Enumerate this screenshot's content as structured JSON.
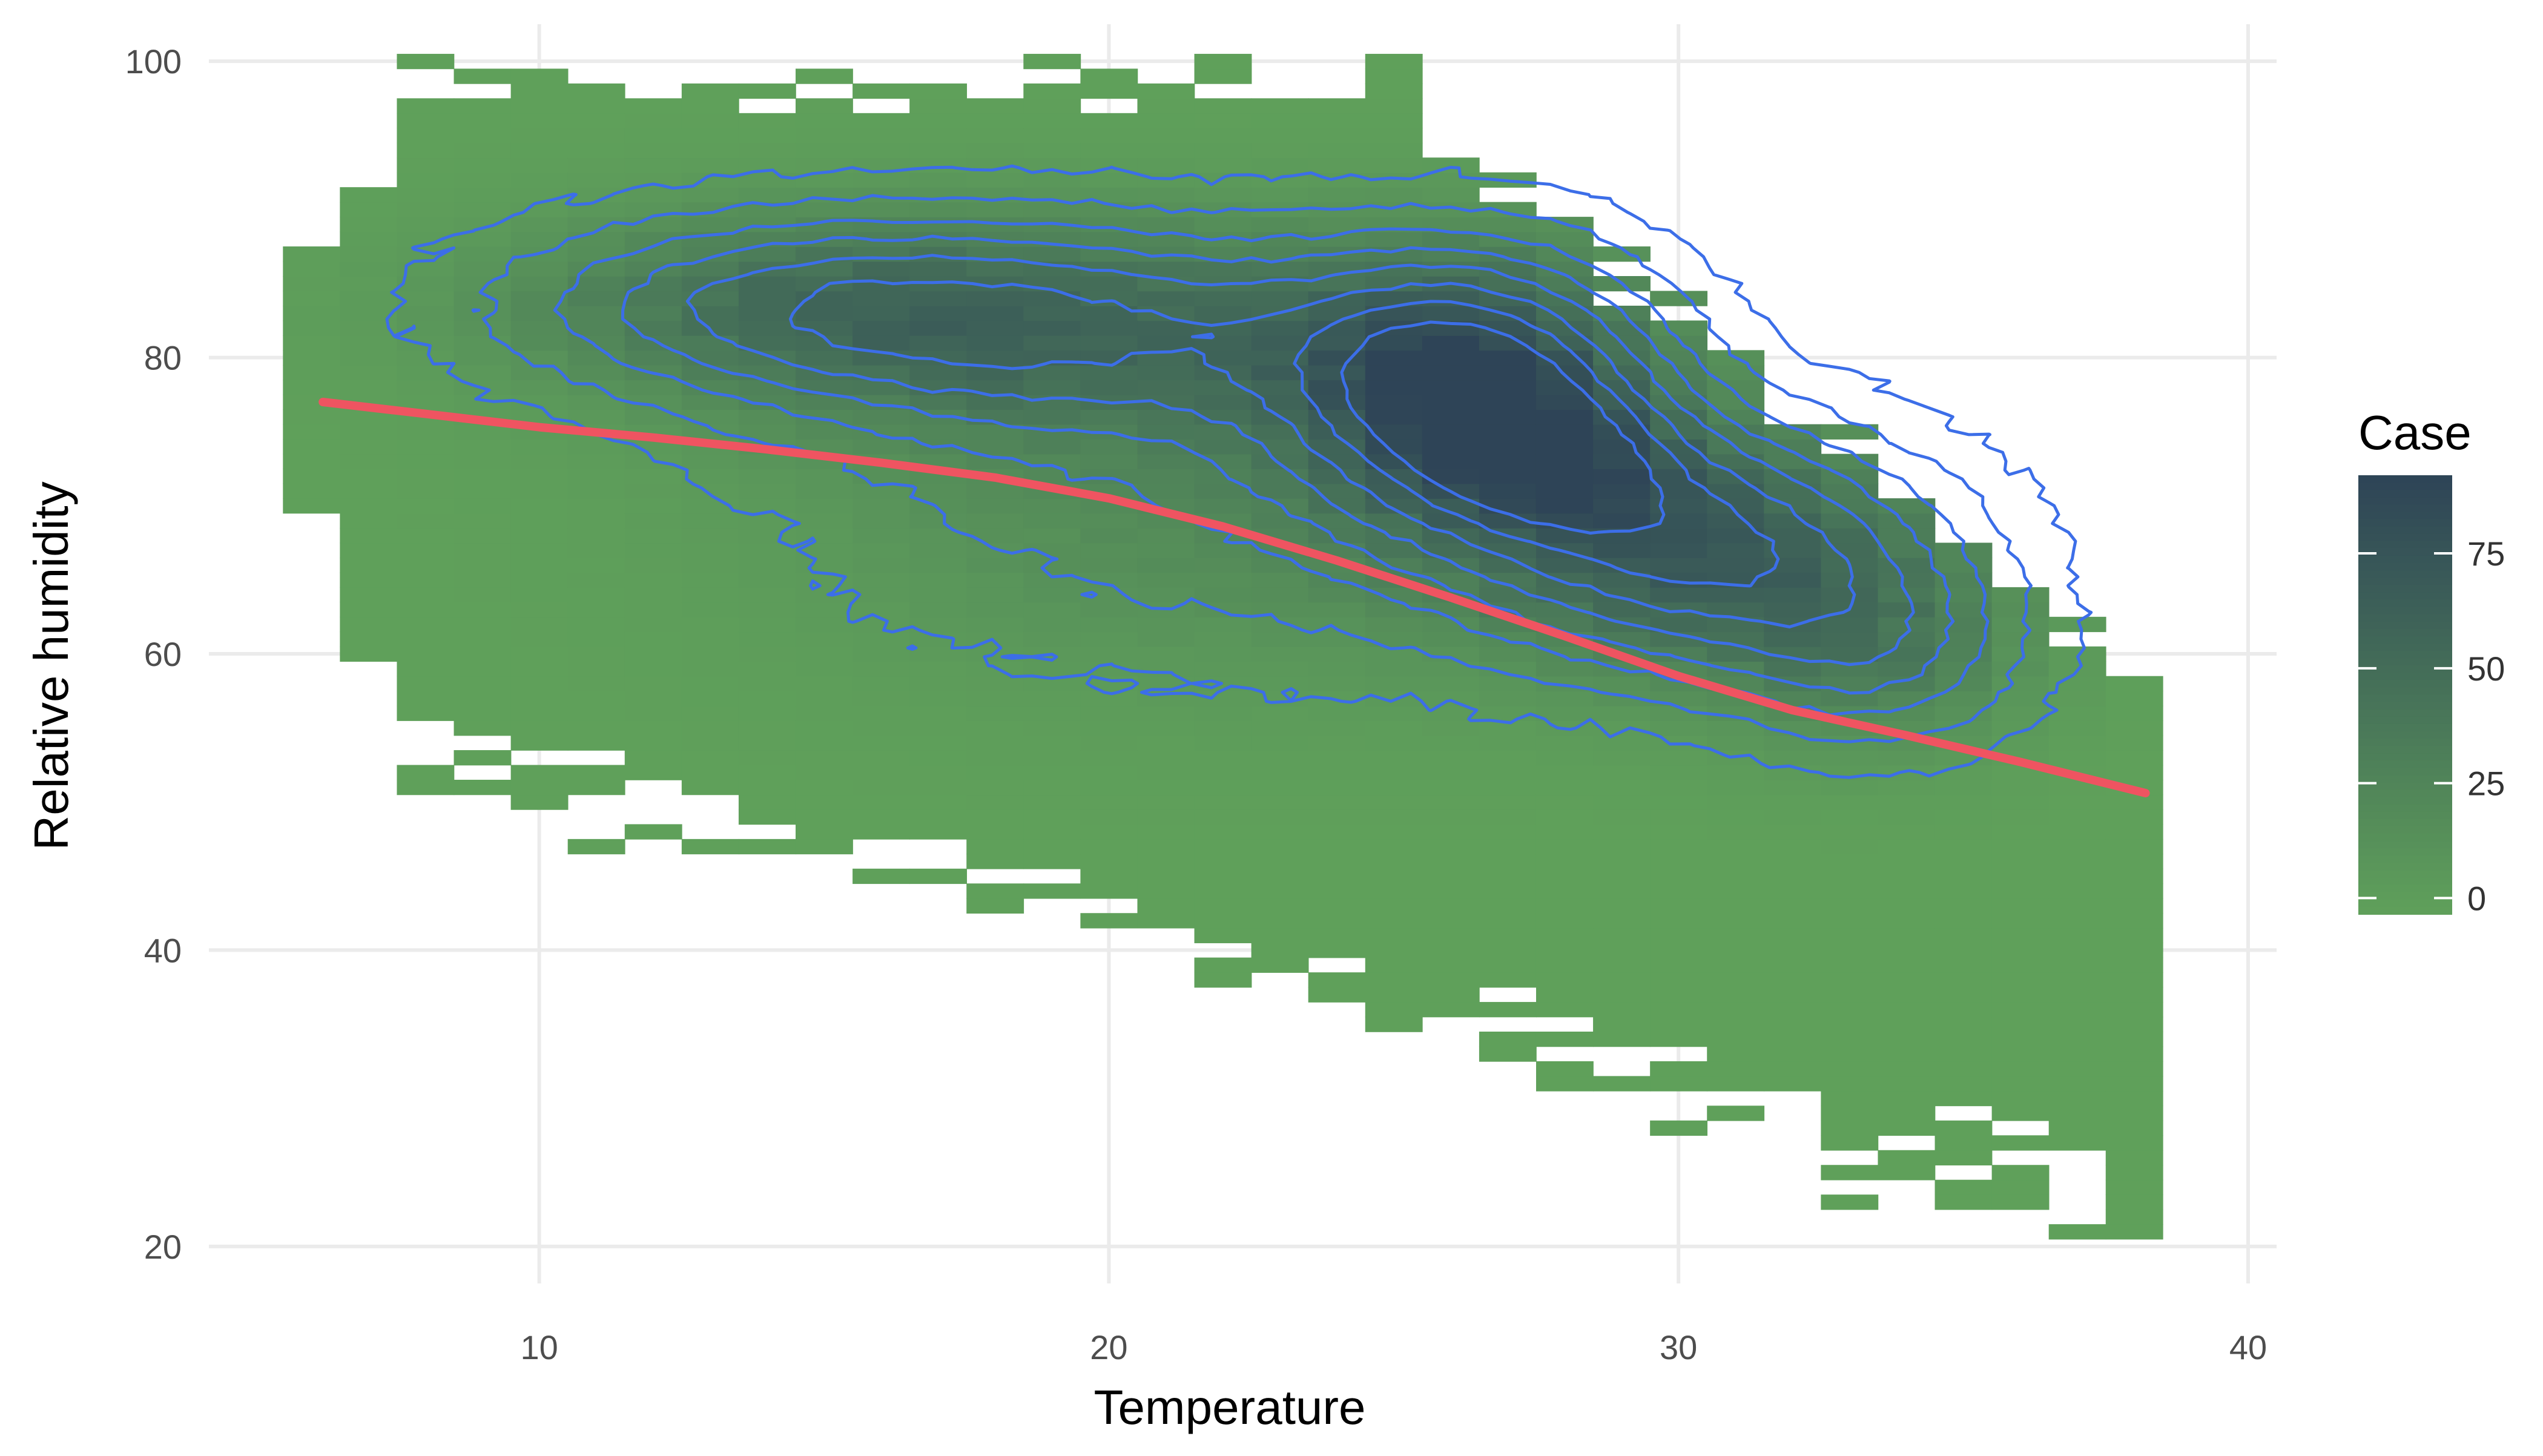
{
  "chart_data": {
    "type": "heatmap",
    "title": "",
    "xlabel": "Temperature",
    "ylabel": "Relative humidity",
    "xlim": [
      4.2,
      40.5
    ],
    "ylim": [
      17.5,
      102.5
    ],
    "x_ticks": [
      "10",
      "20",
      "30",
      "40"
    ],
    "y_ticks": [
      "20",
      "40",
      "60",
      "80",
      "100"
    ],
    "grid": true,
    "legend": {
      "title": "Case",
      "position": "right",
      "ticks": [
        "0",
        "25",
        "50",
        "75"
      ],
      "range": [
        0,
        92
      ],
      "color_low": "#5fa05a",
      "color_high": "#2e4457"
    },
    "layers": {
      "bin2d": "count of cases per temperature/humidity bin",
      "density_contour_color": "#3c6ee8",
      "smooth_line_color": "#ef5461"
    },
    "smooth_line": {
      "x": [
        6.2,
        8,
        10,
        12,
        14,
        16,
        18,
        20,
        22,
        24,
        26,
        28,
        30,
        32,
        34,
        36,
        38.2
      ],
      "y": [
        77.0,
        76.2,
        75.3,
        74.6,
        73.8,
        72.9,
        71.9,
        70.5,
        68.6,
        66.3,
        63.8,
        61.2,
        58.5,
        56.2,
        54.5,
        52.7,
        50.6
      ]
    }
  }
}
